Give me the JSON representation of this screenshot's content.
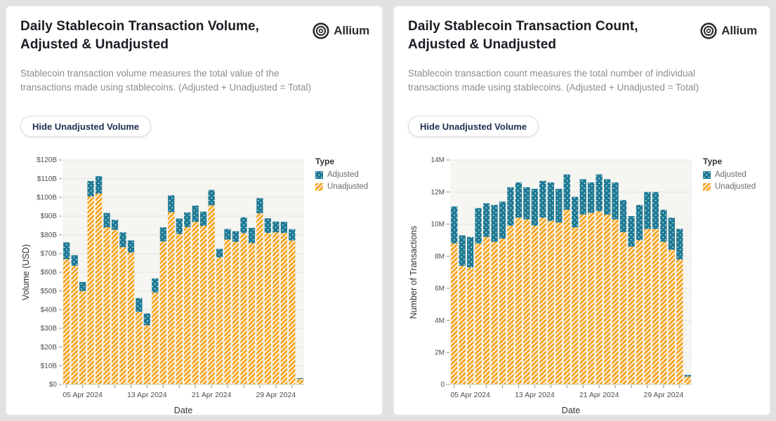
{
  "colors": {
    "adjusted": "#1e7a94",
    "unadjusted": "#f6a21d",
    "plot_background": "#f5f5f2",
    "gridline": "#e5e4e0",
    "tick": "#8a8a86"
  },
  "cards": [
    {
      "title": "Daily Stablecoin Transaction Volume, Adjusted & Unadjusted",
      "description": "Stablecoin transaction volume measures the total value of the transactions made using stablecoins. (Adjusted + Unadjusted = Total)",
      "button_label": "Hide Unadjusted Volume",
      "brand": "Allium",
      "legend": {
        "title": "Type",
        "items": [
          {
            "label": "Adjusted"
          },
          {
            "label": "Unadjusted"
          }
        ]
      }
    },
    {
      "title": "Daily Stablecoin Transaction Count, Adjusted & Unadjusted",
      "description": "Stablecoin transaction count measures the total number of individual transactions made using stablecoins. (Adjusted + Unadjusted = Total)",
      "button_label": "Hide Unadjusted Volume",
      "brand": "Allium",
      "legend": {
        "title": "Type",
        "items": [
          {
            "label": "Adjusted"
          },
          {
            "label": "Unadjusted"
          }
        ]
      }
    }
  ],
  "chart_data": [
    {
      "type": "bar",
      "stacked": true,
      "title": "Daily Stablecoin Transaction Volume, Adjusted & Unadjusted",
      "xlabel": "Date",
      "ylabel": "Volume (USD)",
      "unit": "USD billions",
      "ylim": [
        0,
        120
      ],
      "grid": true,
      "legend_position": "right",
      "y_tick_labels": [
        "$0",
        "$10B",
        "$20B",
        "$30B",
        "$40B",
        "$50B",
        "$60B",
        "$70B",
        "$80B",
        "$90B",
        "$100B",
        "$110B",
        "$120B"
      ],
      "x_tick_labels": [
        "05 Apr 2024",
        "13 Apr 2024",
        "21 Apr 2024",
        "29 Apr 2024"
      ],
      "x_tick_bar_indices": [
        2,
        10,
        18,
        26
      ],
      "series": [
        {
          "name": "Unadjusted",
          "values": [
            67,
            63.5,
            50,
            100.5,
            102,
            84,
            82.7,
            73.4,
            70.5,
            38.8,
            31.7,
            49.2,
            76.5,
            92.1,
            80.5,
            84.2,
            87,
            84.8,
            95.8,
            67.9,
            77.5,
            76.3,
            80.9,
            75.6,
            91.5,
            81,
            81.3,
            81,
            77,
            3
          ]
        },
        {
          "name": "Adjusted",
          "values": [
            9,
            5.6,
            4.8,
            8.3,
            9.3,
            7.7,
            5.3,
            7.9,
            6.5,
            7.4,
            6.3,
            7.5,
            7.5,
            9,
            8.2,
            7.8,
            8.6,
            7.6,
            8.2,
            4.6,
            5.6,
            5.6,
            8.5,
            8.1,
            8.1,
            7.8,
            5.8,
            6,
            6,
            0.4
          ]
        }
      ]
    },
    {
      "type": "bar",
      "stacked": true,
      "title": "Daily Stablecoin Transaction Count, Adjusted & Unadjusted",
      "xlabel": "Date",
      "ylabel": "Number of Transactions",
      "unit": "millions of transactions",
      "ylim": [
        0,
        14
      ],
      "grid": true,
      "legend_position": "right",
      "y_tick_labels": [
        "0",
        "2M",
        "4M",
        "6M",
        "8M",
        "10M",
        "12M",
        "14M"
      ],
      "x_tick_labels": [
        "05 Apr 2024",
        "13 Apr 2024",
        "21 Apr 2024",
        "29 Apr 2024"
      ],
      "x_tick_bar_indices": [
        2,
        10,
        18,
        26
      ],
      "series": [
        {
          "name": "Unadjusted",
          "values": [
            8.8,
            7.4,
            7.3,
            8.8,
            9.2,
            8.9,
            9.1,
            9.9,
            10.4,
            10.3,
            9.9,
            10.4,
            10.2,
            10.1,
            10.9,
            9.8,
            10.6,
            10.7,
            10.8,
            10.6,
            10.3,
            9.5,
            8.6,
            9.0,
            9.7,
            9.7,
            8.9,
            8.4,
            7.8,
            0.5
          ]
        },
        {
          "name": "Adjusted",
          "values": [
            2.3,
            1.9,
            1.9,
            2.2,
            2.1,
            2.3,
            2.3,
            2.4,
            2.2,
            2.0,
            2.3,
            2.3,
            2.4,
            2.1,
            2.2,
            1.9,
            2.2,
            1.9,
            2.3,
            2.2,
            2.3,
            2.0,
            1.9,
            2.2,
            2.3,
            2.3,
            2.0,
            2.0,
            1.9,
            0.1
          ]
        }
      ]
    }
  ]
}
